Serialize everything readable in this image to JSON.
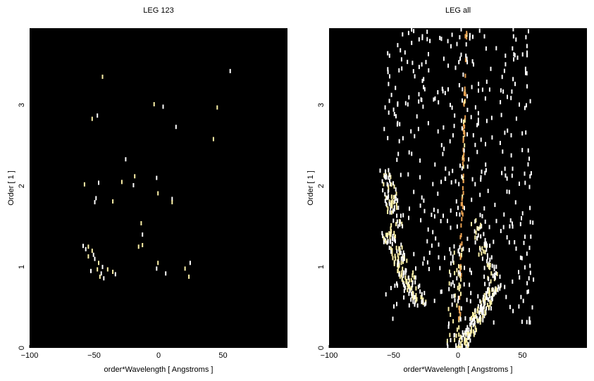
{
  "chart_data": [
    {
      "type": "heatmap",
      "title": "LEG 123",
      "xlabel": "order*Wavelength [ Angstroms ]",
      "ylabel": "Order [ 1 ]",
      "xlim": [
        -100,
        100
      ],
      "ylim": [
        0,
        3.95
      ],
      "x_ticks": [
        -100,
        -50,
        0,
        50
      ],
      "y_ticks": [
        0,
        1,
        2,
        3
      ],
      "background": "#000000",
      "colormap": [
        "#fff2a8",
        "#ffffff",
        "#e8a050"
      ],
      "points": [
        [
          -44,
          3.35
        ],
        [
          55,
          3.42
        ],
        [
          -52,
          2.83
        ],
        [
          -48,
          2.87
        ],
        [
          -4,
          3.01
        ],
        [
          3,
          2.98
        ],
        [
          45,
          2.97
        ],
        [
          13,
          2.73
        ],
        [
          42,
          2.58
        ],
        [
          -26,
          2.33
        ],
        [
          -19,
          2.12
        ],
        [
          -2,
          2.1
        ],
        [
          -29,
          2.05
        ],
        [
          -47,
          2.04
        ],
        [
          -58,
          2.02
        ],
        [
          -20,
          2.01
        ],
        [
          -1,
          1.91
        ],
        [
          -49,
          1.85
        ],
        [
          -36,
          1.81
        ],
        [
          10,
          1.84
        ],
        [
          10,
          1.8
        ],
        [
          -50,
          1.8
        ],
        [
          -14,
          1.54
        ],
        [
          -13,
          1.4
        ],
        [
          -13,
          1.27
        ],
        [
          -59,
          1.26
        ],
        [
          -55,
          1.25
        ],
        [
          -57,
          1.22
        ],
        [
          -52,
          1.2
        ],
        [
          -51,
          1.15
        ],
        [
          -55,
          1.13
        ],
        [
          -50,
          1.1
        ],
        [
          -47,
          1.05
        ],
        [
          -44,
          1.0
        ],
        [
          -48,
          0.97
        ],
        [
          -53,
          0.95
        ],
        [
          -40,
          0.97
        ],
        [
          -45,
          0.92
        ],
        [
          -36,
          0.94
        ],
        [
          -34,
          0.91
        ],
        [
          -46,
          0.88
        ],
        [
          -43,
          0.86
        ],
        [
          -1,
          1.05
        ],
        [
          -2,
          0.98
        ],
        [
          20,
          0.98
        ],
        [
          24,
          1.05
        ],
        [
          23,
          0.88
        ],
        [
          5,
          0.92
        ],
        [
          -16,
          1.25
        ]
      ]
    },
    {
      "type": "heatmap",
      "title": "LEG all",
      "xlabel": "order*Wavelength [ Angstroms ]",
      "ylabel": "Order [ 1 ]",
      "xlim": [
        -100,
        100
      ],
      "ylim": [
        0,
        3.95
      ],
      "x_ticks": [
        -100,
        -50,
        0,
        50
      ],
      "y_ticks": [
        0,
        1,
        2,
        3
      ],
      "background": "#000000",
      "colormap": [
        "#fff2a8",
        "#ffffff",
        "#e8a050"
      ],
      "features": [
        {
          "kind": "line",
          "from": [
            0,
            0.0
          ],
          "to": [
            6,
            3.95
          ],
          "density": 90,
          "color": "#e8a050"
        },
        {
          "kind": "band",
          "from": [
            2,
            0.0
          ],
          "to": [
            28,
            0.75
          ],
          "width": 10,
          "density": 160
        },
        {
          "kind": "band",
          "from": [
            -57,
            1.5
          ],
          "to": [
            -30,
            0.52
          ],
          "width": 12,
          "density": 150
        },
        {
          "kind": "band",
          "from": [
            -57,
            2.2
          ],
          "to": [
            -48,
            1.5
          ],
          "width": 10,
          "density": 70
        },
        {
          "kind": "band",
          "from": [
            12,
            1.6
          ],
          "to": [
            28,
            0.8
          ],
          "width": 10,
          "density": 60
        },
        {
          "kind": "band",
          "from": [
            -5,
            0.0
          ],
          "to": [
            -3,
            1.2
          ],
          "width": 8,
          "density": 40
        },
        {
          "kind": "scatter",
          "xrange": [
            -58,
            58
          ],
          "yrange": [
            0.3,
            3.95
          ],
          "density": 420
        }
      ]
    }
  ]
}
